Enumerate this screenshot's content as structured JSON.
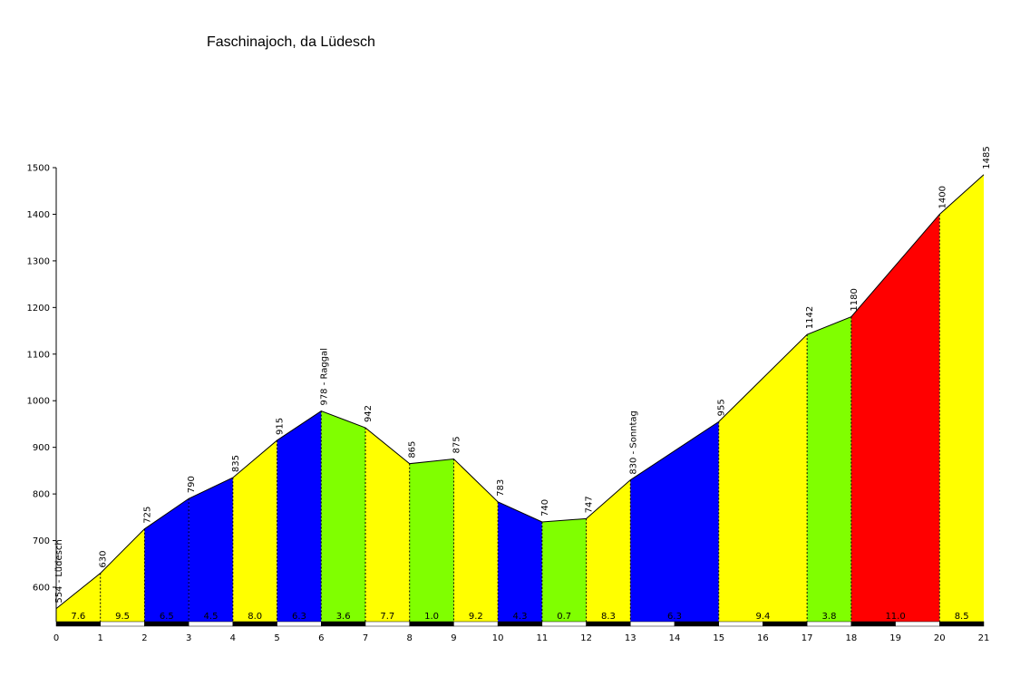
{
  "chart_data": {
    "type": "area",
    "title": "Faschinajoch, da Lüdesch",
    "xlabel": "",
    "ylabel": "",
    "xlim": [
      0,
      21
    ],
    "ylim": [
      520,
      1500
    ],
    "y_ticks": [
      600,
      700,
      800,
      900,
      1000,
      1100,
      1200,
      1300,
      1400,
      1500
    ],
    "x_ticks": [
      0,
      1,
      2,
      3,
      4,
      5,
      6,
      7,
      8,
      9,
      10,
      11,
      12,
      13,
      14,
      15,
      16,
      17,
      18,
      19,
      20,
      21
    ],
    "grid": false,
    "profile_points": [
      {
        "x": 0,
        "y": 554,
        "label": "554 - Lüdesch"
      },
      {
        "x": 1,
        "y": 630,
        "label": "630"
      },
      {
        "x": 2,
        "y": 725,
        "label": "725"
      },
      {
        "x": 3,
        "y": 790,
        "label": "790"
      },
      {
        "x": 4,
        "y": 835,
        "label": "835"
      },
      {
        "x": 5,
        "y": 915,
        "label": "915"
      },
      {
        "x": 6,
        "y": 978,
        "label": "978 - Raggal"
      },
      {
        "x": 7,
        "y": 942,
        "label": "942"
      },
      {
        "x": 8,
        "y": 865,
        "label": "865"
      },
      {
        "x": 9,
        "y": 875,
        "label": "875"
      },
      {
        "x": 10,
        "y": 783,
        "label": "783"
      },
      {
        "x": 11,
        "y": 740,
        "label": "740"
      },
      {
        "x": 12,
        "y": 747,
        "label": "747"
      },
      {
        "x": 13,
        "y": 830,
        "label": "830 - Sonntag"
      },
      {
        "x": 15,
        "y": 955,
        "label": "955"
      },
      {
        "x": 17,
        "y": 1142,
        "label": "1142"
      },
      {
        "x": 18,
        "y": 1180,
        "label": "1180"
      },
      {
        "x": 20,
        "y": 1400,
        "label": "1400"
      },
      {
        "x": 21,
        "y": 1485,
        "label": "1485"
      }
    ],
    "segments": [
      {
        "from": 0,
        "to": 1,
        "gradient": "7.6",
        "color": "#ffff00"
      },
      {
        "from": 1,
        "to": 2,
        "gradient": "9.5",
        "color": "#ffff00"
      },
      {
        "from": 2,
        "to": 3,
        "gradient": "6.5",
        "color": "#0000ff"
      },
      {
        "from": 3,
        "to": 4,
        "gradient": "4.5",
        "color": "#0000ff"
      },
      {
        "from": 4,
        "to": 5,
        "gradient": "8.0",
        "color": "#ffff00"
      },
      {
        "from": 5,
        "to": 6,
        "gradient": "6.3",
        "color": "#0000ff"
      },
      {
        "from": 6,
        "to": 7,
        "gradient": "3.6",
        "color": "#80ff00"
      },
      {
        "from": 7,
        "to": 8,
        "gradient": "7.7",
        "color": "#ffff00"
      },
      {
        "from": 8,
        "to": 9,
        "gradient": "1.0",
        "color": "#80ff00"
      },
      {
        "from": 9,
        "to": 10,
        "gradient": "9.2",
        "color": "#ffff00"
      },
      {
        "from": 10,
        "to": 11,
        "gradient": "4.3",
        "color": "#0000ff"
      },
      {
        "from": 11,
        "to": 12,
        "gradient": "0.7",
        "color": "#80ff00"
      },
      {
        "from": 12,
        "to": 13,
        "gradient": "8.3",
        "color": "#ffff00"
      },
      {
        "from": 13,
        "to": 15,
        "gradient": "6.3",
        "color": "#0000ff"
      },
      {
        "from": 15,
        "to": 17,
        "gradient": "9.4",
        "color": "#ffff00"
      },
      {
        "from": 17,
        "to": 18,
        "gradient": "3.8",
        "color": "#80ff00"
      },
      {
        "from": 18,
        "to": 20,
        "gradient": "11.0",
        "color": "#ff0000"
      },
      {
        "from": 20,
        "to": 21,
        "gradient": "8.5",
        "color": "#ffff00"
      }
    ]
  }
}
